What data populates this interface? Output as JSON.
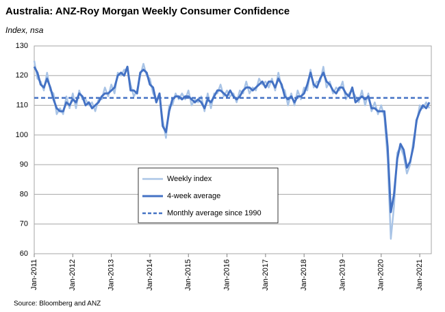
{
  "chart_data": {
    "type": "line",
    "title": "Australia: ANZ-Roy Morgan Weekly Consumer Confidence",
    "subtitle": "Index, nsa",
    "source": "Source: Bloomberg and ANZ",
    "x": [
      2011,
      2011.083,
      2011.167,
      2011.25,
      2011.333,
      2011.417,
      2011.5,
      2011.583,
      2011.667,
      2011.75,
      2011.833,
      2011.917,
      2012,
      2012.083,
      2012.167,
      2012.25,
      2012.333,
      2012.417,
      2012.5,
      2012.583,
      2012.667,
      2012.75,
      2012.833,
      2012.917,
      2013,
      2013.083,
      2013.167,
      2013.25,
      2013.333,
      2013.417,
      2013.5,
      2013.583,
      2013.667,
      2013.75,
      2013.833,
      2013.917,
      2014,
      2014.083,
      2014.167,
      2014.25,
      2014.333,
      2014.417,
      2014.5,
      2014.583,
      2014.667,
      2014.75,
      2014.833,
      2014.917,
      2015,
      2015.083,
      2015.167,
      2015.25,
      2015.333,
      2015.417,
      2015.5,
      2015.583,
      2015.667,
      2015.75,
      2015.833,
      2015.917,
      2016,
      2016.083,
      2016.167,
      2016.25,
      2016.333,
      2016.417,
      2016.5,
      2016.583,
      2016.667,
      2016.75,
      2016.833,
      2016.917,
      2017,
      2017.083,
      2017.167,
      2017.25,
      2017.333,
      2017.417,
      2017.5,
      2017.583,
      2017.667,
      2017.75,
      2017.833,
      2017.917,
      2018,
      2018.083,
      2018.167,
      2018.25,
      2018.333,
      2018.417,
      2018.5,
      2018.583,
      2018.667,
      2018.75,
      2018.833,
      2018.917,
      2019,
      2019.083,
      2019.167,
      2019.25,
      2019.333,
      2019.417,
      2019.5,
      2019.583,
      2019.667,
      2019.75,
      2019.833,
      2019.917,
      2020,
      2020.083,
      2020.167,
      2020.25,
      2020.333,
      2020.417,
      2020.5,
      2020.583,
      2020.667,
      2020.75,
      2020.833,
      2020.917,
      2021,
      2021.083,
      2021.167,
      2021.25
    ],
    "series": [
      {
        "name": "Weekly index",
        "color": "#a9c4e6",
        "width": 2.5,
        "values": [
          125,
          119,
          118,
          115,
          121,
          115,
          114,
          107,
          109,
          107,
          113,
          109,
          114,
          109,
          115,
          112,
          112,
          110,
          111,
          108,
          112,
          112,
          116,
          113,
          117,
          114,
          121,
          120,
          122,
          122,
          117,
          113,
          115,
          120,
          124,
          120,
          119,
          114,
          112,
          113,
          105,
          99,
          110,
          110,
          114,
          112,
          114,
          112,
          115,
          110,
          112,
          111,
          113,
          108,
          114,
          109,
          114,
          114,
          117,
          113,
          115,
          113,
          114,
          111,
          115,
          114,
          118,
          114,
          116,
          115,
          119,
          117,
          118,
          116,
          119,
          115,
          121,
          116,
          115,
          110,
          114,
          110,
          115,
          112,
          116,
          115,
          122,
          116,
          118,
          118,
          123,
          116,
          118,
          114,
          116,
          115,
          118,
          112,
          114,
          115,
          113,
          111,
          115,
          110,
          114,
          108,
          111,
          107,
          110,
          106,
          92,
          65,
          76,
          94,
          96,
          93,
          87,
          90,
          98,
          104,
          110,
          109,
          111,
          109
        ]
      },
      {
        "name": "4-week average",
        "color": "#4472c4",
        "width": 3,
        "values": [
          123,
          121,
          117,
          116,
          119,
          116,
          112,
          109,
          108,
          108,
          111,
          110,
          112,
          111,
          114,
          113,
          110,
          111,
          109,
          110,
          111,
          113,
          114,
          114,
          115,
          116,
          120,
          121,
          120,
          123,
          115,
          115,
          114,
          121,
          122,
          121,
          117,
          116,
          111,
          114,
          103,
          101,
          108,
          112,
          113,
          113,
          112,
          113,
          113,
          112,
          111,
          112,
          111,
          109,
          112,
          111,
          113,
          115,
          115,
          114,
          113,
          115,
          113,
          112,
          113,
          115,
          116,
          116,
          115,
          116,
          117,
          118,
          116,
          118,
          118,
          116,
          119,
          117,
          113,
          112,
          113,
          111,
          113,
          113,
          114,
          117,
          121,
          117,
          116,
          119,
          121,
          118,
          117,
          115,
          114,
          116,
          116,
          114,
          113,
          116,
          111,
          112,
          113,
          112,
          113,
          109,
          109,
          108,
          108,
          108,
          96,
          74,
          80,
          92,
          97,
          95,
          89,
          91,
          96,
          105,
          108,
          110,
          109,
          111
        ]
      }
    ],
    "reference_line": {
      "name": "Monthly average since 1990",
      "value": 112.5,
      "color": "#4472c4"
    },
    "xlim": [
      2011,
      2021.3
    ],
    "xticks": [
      {
        "value": 2011,
        "label": "Jan-2011"
      },
      {
        "value": 2012,
        "label": "Jan-2012"
      },
      {
        "value": 2013,
        "label": "Jan-2013"
      },
      {
        "value": 2014,
        "label": "Jan-2014"
      },
      {
        "value": 2015,
        "label": "Jan-2015"
      },
      {
        "value": 2016,
        "label": "Jan-2016"
      },
      {
        "value": 2017,
        "label": "Jan-2017"
      },
      {
        "value": 2018,
        "label": "Jan-2018"
      },
      {
        "value": 2019,
        "label": "Jan-2019"
      },
      {
        "value": 2020,
        "label": "Jan-2020"
      },
      {
        "value": 2021,
        "label": "Jan-2021"
      }
    ],
    "ylim": [
      60,
      130
    ],
    "yticks": [
      60,
      70,
      80,
      90,
      100,
      110,
      120,
      130
    ],
    "grid": true
  }
}
